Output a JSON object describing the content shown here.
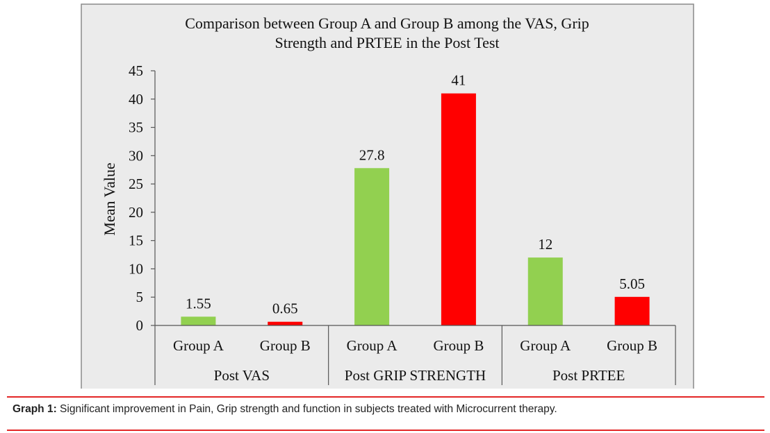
{
  "colors": {
    "group_a": "#92d050",
    "group_b": "#ff0000",
    "rule": "#e32626",
    "frame": "#8a8a8a",
    "plot_bg": "#e9e9e9"
  },
  "caption": {
    "label": "Graph 1:",
    "text": "Significant improvement in Pain, Grip strength and function in subjects treated with Microcurrent therapy."
  },
  "chart_data": {
    "type": "bar",
    "title_lines": [
      "Comparison between Group A and Group B among the VAS, Grip",
      "Strength and PRTEE in the Post Test"
    ],
    "ylabel": "Mean Value",
    "ylim": [
      0,
      45
    ],
    "yticks": [
      "0",
      "5",
      "10",
      "15",
      "20",
      "25",
      "30",
      "35",
      "40",
      "45"
    ],
    "categories": [
      {
        "label": "Post VAS",
        "bars": [
          {
            "name": "Group A",
            "value": 1.55,
            "label": "1.55"
          },
          {
            "name": "Group B",
            "value": 0.65,
            "label": "0.65"
          }
        ]
      },
      {
        "label": "Post GRIP STRENGTH",
        "bars": [
          {
            "name": "Group A",
            "value": 27.8,
            "label": "27.8"
          },
          {
            "name": "Group B",
            "value": 41,
            "label": "41"
          }
        ]
      },
      {
        "label": "Post PRTEE",
        "bars": [
          {
            "name": "Group A",
            "value": 12,
            "label": "12"
          },
          {
            "name": "Group B",
            "value": 5.05,
            "label": "5.05"
          }
        ]
      }
    ]
  }
}
